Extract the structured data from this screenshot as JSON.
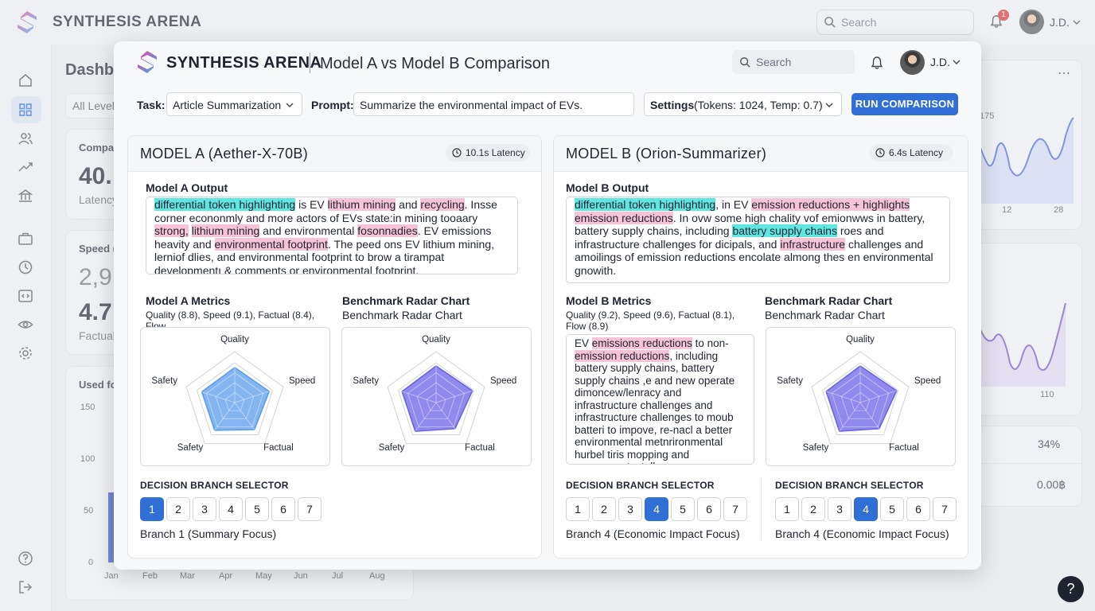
{
  "app": {
    "title": "SYNTHESIS ARENA",
    "search_placeholder": "Search",
    "notification_count": "1",
    "user": "J.D."
  },
  "background": {
    "page_title": "Dashb",
    "filter": "All Level",
    "card1_label": "Compar",
    "card1_value": "40.",
    "card1_sub": "Latency",
    "card2_label": "Speed (",
    "card2_value1": "2,9",
    "card2_value2": "4.7",
    "card2_sub": "Factual",
    "card3_label": "Used fo",
    "yticks": [
      "150",
      "100",
      "50",
      "0"
    ],
    "months": [
      "Jan",
      "Feb",
      "Mar",
      "Apr",
      "May",
      "Jun",
      "Jul",
      "Aug"
    ],
    "right_tick_top": "175",
    "right_ticks_x": [
      "12",
      "28"
    ],
    "right_tick2": "110",
    "stat1": "34%",
    "stat2": "0.00฿"
  },
  "modal": {
    "title": "SYNTHESIS ARENA",
    "subtitle": "Model A vs Model B Comparison",
    "search_placeholder": "Search",
    "user": "J.D.",
    "task_label": "Task:",
    "task_value": "Article Summarization",
    "prompt_label": "Prompt:",
    "prompt_value": "Summarize the environmental impact of EVs.",
    "settings_label": "Settings",
    "settings_value": "(Tokens: 1024, Temp: 0.7)",
    "run_button": "RUN COMPARISON"
  },
  "model_a": {
    "title": "MODEL A (Aether-X-70B)",
    "latency": "10.1s Latency",
    "output_label": "Model A Output",
    "output": [
      {
        "t": "differential token highlighting",
        "h": "c"
      },
      {
        "t": " is EV ",
        "h": ""
      },
      {
        "t": "lithium mining",
        "h": "p"
      },
      {
        "t": " and ",
        "h": ""
      },
      {
        "t": "recycling",
        "h": "p"
      },
      {
        "t": ". Insse corner econonmly and more actors of EVs state:in mining tooaary ",
        "h": ""
      },
      {
        "t": "strong,",
        "h": "p"
      },
      {
        "t": " ",
        "h": ""
      },
      {
        "t": "lithium mining",
        "h": "p"
      },
      {
        "t": " and environmental ",
        "h": ""
      },
      {
        "t": "fosonnadies",
        "h": "p"
      },
      {
        "t": ". EV emissions heavity and ",
        "h": ""
      },
      {
        "t": "environmental footprint",
        "h": "p"
      },
      {
        "t": ". The peed ons EV lithium mining, lerniof dlies, and environmental footprint to brow a tirampat developmentı & comments or environmental footprint.",
        "h": ""
      }
    ],
    "metrics_label": "Model A Metrics",
    "metrics_text": "Quality (8.8), Speed (9.1), Factual (8.4), Flow",
    "radar_label": "Benchmark Radar Chart",
    "radar_sub": "Benchmark Radar Chart",
    "radar_axes": [
      "Quality",
      "Speed",
      "Factual",
      "Safety",
      "Safety"
    ],
    "branch_label": "DECISION BRANCH SELECTOR",
    "branches": [
      "1",
      "2",
      "3",
      "4",
      "5",
      "6",
      "7"
    ],
    "branch_selected": 1,
    "branch_text": "Branch 1 (Summary Focus)"
  },
  "model_b": {
    "title": "MODEL B (Orion-Summarizer)",
    "latency": "6.4s Latency",
    "output_label": "Model B Output",
    "output": [
      {
        "t": "differential token highlighting",
        "h": "c"
      },
      {
        "t": ", in EV ",
        "h": ""
      },
      {
        "t": "emission reductions + highlights emission reductions",
        "h": "p"
      },
      {
        "t": ". In ovw some high chality vof emionwws in battery, battery supply chains, including ",
        "h": ""
      },
      {
        "t": "battery supply chains",
        "h": "c"
      },
      {
        "t": " roes and infrastructure challenges for dicipals, and ",
        "h": ""
      },
      {
        "t": "infrastructure",
        "h": "p"
      },
      {
        "t": " challenges and amoilings of emission reductions encolate almong thes en environmental gnowith.",
        "h": ""
      }
    ],
    "metrics_label": "Model B Metrics",
    "metrics_text": "Quality (9.2), Speed (9.6), Factual (8.1), Flow (8.9)",
    "detail_text": [
      {
        "t": "EV ",
        "h": ""
      },
      {
        "t": "emissions reductions",
        "h": "p"
      },
      {
        "t": " to non-",
        "h": ""
      },
      {
        "t": "emission reductions",
        "h": "p"
      },
      {
        "t": ", including battery supply chains, battery supply chains ,e and new operate dimoncew/lenracy and infrastructure challenges and infrastructure challenges to moub batteri to impove, re-nacl a better environmental metnrironmental hurbel tiris mopping and recoursecst, stalleace",
        "h": ""
      }
    ],
    "radar_label": "Benchmark Radar Chart",
    "radar_sub": "Benchmark Radar Chart",
    "radar_axes": [
      "Quality",
      "Speed",
      "Factual",
      "Safety",
      "Safety"
    ],
    "branch_label": "DECISION BRANCH SELECTOR",
    "branches": [
      "1",
      "2",
      "3",
      "4",
      "5",
      "6",
      "7"
    ],
    "branch_selected": 4,
    "branch_text": "Branch 4 (Economic Impact Focus)",
    "branch2_label": "DECISION BRANCH SELECTOR",
    "branch2_selected": 4,
    "branch2_text": "Branch 4 (Economic Impact Focus)"
  },
  "colors": {
    "accent": "#2f6fd6",
    "highlight_cyan": "#5fe6e0",
    "highlight_pink": "#f7c3d6",
    "radar_a": "#5b9cec",
    "radar_b": "#6b63e6"
  },
  "radar_values": {
    "model_a": [
      8.8,
      9.1,
      8.4,
      8.6,
      8.7
    ],
    "model_b": [
      9.2,
      9.6,
      8.1,
      8.9,
      9.0
    ]
  },
  "help_label": "?"
}
